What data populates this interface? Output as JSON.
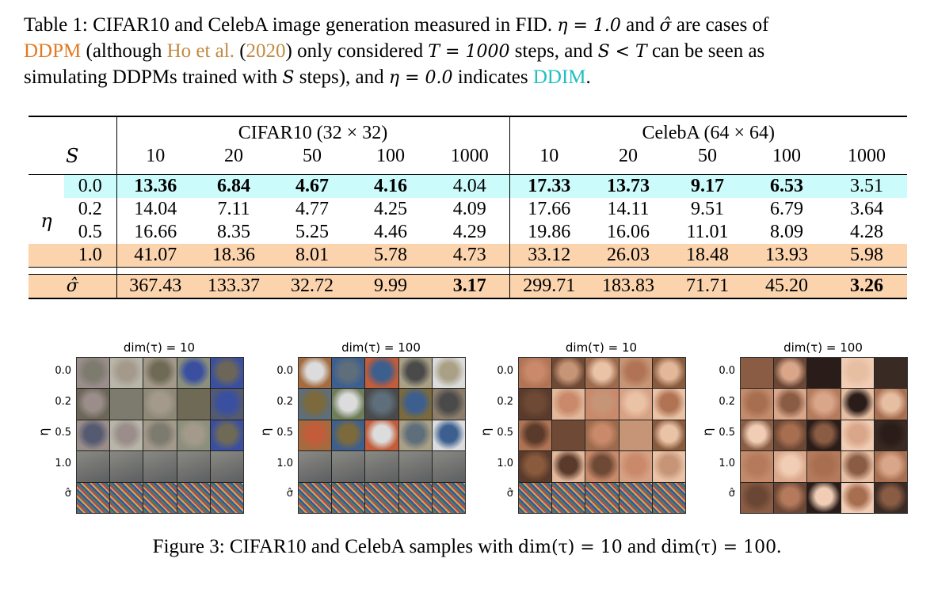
{
  "table_caption": {
    "line1_prefix": "Table 1: CIFAR10 and CelebA image generation measured in FID.",
    "eta_eq": "η = 1.0",
    "and": "and",
    "sigma_hat": "σ̂",
    "are_cases_of": "are cases of",
    "ddpm": "DDPM",
    "although": "(although",
    "ho": "Ho et al.",
    "year_open": "(",
    "year": "2020",
    "year_close": ")",
    "only_considered": "only considered",
    "T_eq": "T = 1000",
    "steps_and": "steps, and",
    "S_lt_T": "S < T",
    "can_be_seen_as": "can be seen as",
    "simulating": "simulating DDPMs trained with",
    "S": "S",
    "steps_and_eta": "steps), and",
    "eta_zero": "η = 0.0",
    "indicates": "indicates",
    "ddim": "DDIM",
    "period": "."
  },
  "table": {
    "cifar_header": "CIFAR10 (32 × 32)",
    "celeba_header": "CelebA (64 × 64)",
    "s_label": "S",
    "eta_label": "η",
    "steps": [
      "10",
      "20",
      "50",
      "100",
      "1000",
      "10",
      "20",
      "50",
      "100",
      "1000"
    ],
    "rows": [
      {
        "label": "0.0",
        "values": [
          "13.36",
          "6.84",
          "4.67",
          "4.16",
          "4.04",
          "17.33",
          "13.73",
          "9.17",
          "6.53",
          "3.51"
        ]
      },
      {
        "label": "0.2",
        "values": [
          "14.04",
          "7.11",
          "4.77",
          "4.25",
          "4.09",
          "17.66",
          "14.11",
          "9.51",
          "6.79",
          "3.64"
        ]
      },
      {
        "label": "0.5",
        "values": [
          "16.66",
          "8.35",
          "5.25",
          "4.46",
          "4.29",
          "19.86",
          "16.06",
          "11.01",
          "8.09",
          "4.28"
        ]
      },
      {
        "label": "1.0",
        "values": [
          "41.07",
          "18.36",
          "8.01",
          "5.78",
          "4.73",
          "33.12",
          "26.03",
          "18.48",
          "13.93",
          "5.98"
        ]
      }
    ],
    "sigma_row": {
      "label": "σ̂",
      "values": [
        "367.43",
        "133.37",
        "32.72",
        "9.99",
        "3.17",
        "299.71",
        "183.83",
        "71.71",
        "45.20",
        "3.26"
      ]
    }
  },
  "figures": [
    {
      "title": "dim(τ) = 10"
    },
    {
      "title": "dim(τ) = 100"
    },
    {
      "title": "dim(τ) = 10"
    },
    {
      "title": "dim(τ) = 100"
    }
  ],
  "figure_row_labels": [
    "0.0",
    "0.2",
    "0.5",
    "1.0",
    "σ̂"
  ],
  "figure_eta_label": "η",
  "figure_caption": {
    "prefix": "Figure 3: CIFAR10 and CelebA samples with",
    "dim10": "dim(τ) = 10",
    "and": "and",
    "dim100": "dim(τ) = 100",
    "period": "."
  },
  "colors": {
    "ddpm": "#e07b22",
    "citation": "#c08a40",
    "ddim": "#1fbfbf",
    "cyan_row": "#ccfbfb",
    "orange_row": "#fbd4ad"
  }
}
